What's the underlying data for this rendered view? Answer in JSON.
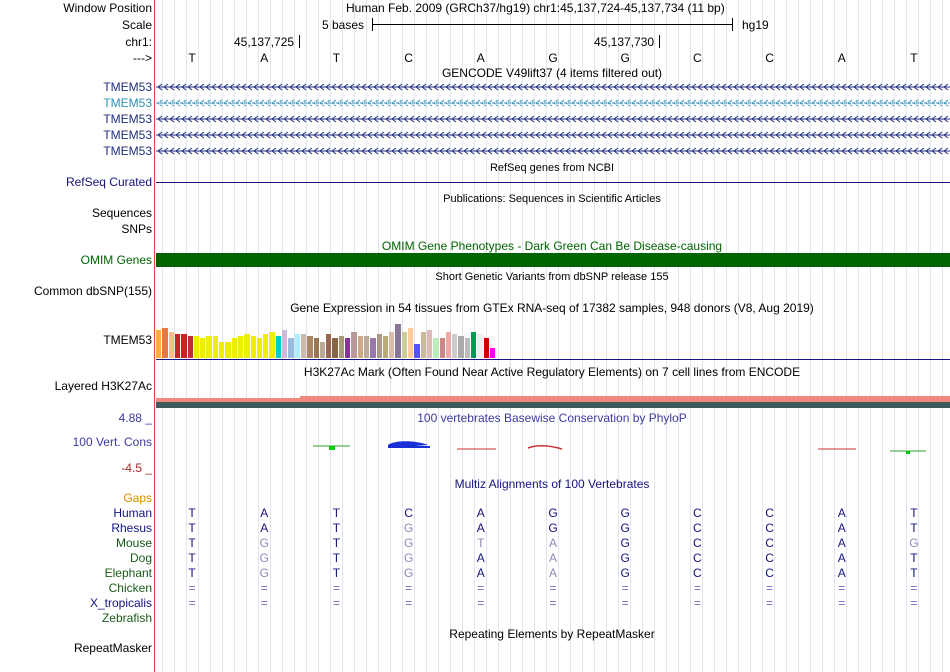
{
  "labels": {
    "window_position": "Window Position",
    "scale": "Scale",
    "chrom": "chr1:",
    "arrow": "--->",
    "gencode_genes": [
      "TMEM53",
      "TMEM53",
      "TMEM53",
      "TMEM53",
      "TMEM53"
    ],
    "refseq": "RefSeq Curated",
    "sequences": "Sequences",
    "snps": "SNPs",
    "omim": "OMIM Genes",
    "dbsnp": "Common dbSNP(155)",
    "gtex_gene": "TMEM53",
    "h3k27ac": "Layered H3K27Ac",
    "cons_max": "4.88 _",
    "cons": "100 Vert. Cons",
    "cons_min": "-4.5 _",
    "gaps": "Gaps",
    "species": [
      "Human",
      "Rhesus",
      "Mouse",
      "Dog",
      "Elephant",
      "Chicken",
      "X_tropicalis",
      "Zebrafish"
    ],
    "repeatmasker": "RepeatMasker"
  },
  "header": {
    "position": "Human Feb. 2009 (GRCh37/hg19)   chr1:45,137,724-45,137,734 (11 bp)",
    "scale_text": "5 bases",
    "assembly": "hg19",
    "coord1": "45,137,725",
    "coord2": "45,137,730"
  },
  "bases": [
    "T",
    "A",
    "T",
    "C",
    "A",
    "G",
    "G",
    "C",
    "C",
    "A",
    "T"
  ],
  "tracks": {
    "gencode_title": "GENCODE V49lift37 (4 items filtered out)",
    "refseq_title": "RefSeq genes from NCBI",
    "publications_title": "Publications: Sequences in Scientific Articles",
    "omim_title": "OMIM Gene Phenotypes - Dark Green Can Be Disease-causing",
    "dbsnp_title": "Short Genetic Variants from dbSNP release 155",
    "gtex_title": "Gene Expression in 54 tissues from GTEx RNA-seq of 17382 samples, 948 donors (V8, Aug 2019)",
    "h3k27ac_title": "H3K27Ac Mark (Often Found Near Active Regulatory Elements) on 7 cell lines from ENCODE",
    "phylop_title": "100 vertebrates Basewise Conservation by PhyloP",
    "multiz_title": "Multiz Alignments of 100 Vertebrates",
    "repeat_title": "Repeating Elements by RepeatMasker"
  },
  "alignment": [
    [
      "T",
      "A",
      "T",
      "C",
      "A",
      "G",
      "G",
      "C",
      "C",
      "A",
      "T"
    ],
    [
      "T",
      "A",
      "T",
      "G",
      "A",
      "G",
      "G",
      "C",
      "C",
      "A",
      "T"
    ],
    [
      "T",
      "G",
      "T",
      "G",
      "T",
      "A",
      "G",
      "C",
      "C",
      "A",
      "G"
    ],
    [
      "T",
      "G",
      "T",
      "G",
      "A",
      "A",
      "G",
      "C",
      "C",
      "A",
      "T"
    ],
    [
      "T",
      "G",
      "T",
      "G",
      "A",
      "A",
      "G",
      "C",
      "C",
      "A",
      "T"
    ],
    [
      "=",
      "=",
      "=",
      "=",
      "=",
      "=",
      "=",
      "=",
      "=",
      "=",
      "="
    ],
    [
      "=",
      "=",
      "=",
      "=",
      "=",
      "=",
      "=",
      "=",
      "=",
      "=",
      "="
    ]
  ],
  "gtex_values": [
    28,
    30,
    26,
    24,
    24,
    22,
    22,
    20,
    22,
    22,
    16,
    16,
    20,
    22,
    24,
    22,
    20,
    24,
    26,
    22,
    28,
    20,
    24,
    24,
    22,
    20,
    16,
    24,
    20,
    22,
    20,
    26,
    22,
    22,
    20,
    24,
    22,
    26,
    34,
    26,
    30,
    14,
    26,
    28,
    20,
    20,
    26,
    24,
    22,
    20,
    26,
    24,
    20,
    10
  ],
  "gtex_colors": [
    "#ffaa55",
    "#ee7733",
    "#ffbb88",
    "#cc2222",
    "#cc2222",
    "#bb3333",
    "#eeee00",
    "#eeee00",
    "#eeee00",
    "#eeee00",
    "#eeee00",
    "#eeee00",
    "#eeee00",
    "#eeee00",
    "#eeee00",
    "#eeee00",
    "#eeee00",
    "#eeee00",
    "#eeee00",
    "#00cccc",
    "#ccbbdd",
    "#99bbdd",
    "#aaeeff",
    "#ccbbaa",
    "#aa8866",
    "#997755",
    "#bbaa99",
    "#996655",
    "#886644",
    "#aa9977",
    "#883399",
    "#bb9999",
    "#ccaa88",
    "#bbaa99",
    "#9977aa",
    "#aa9988",
    "#bbaa77",
    "#ddbbaa",
    "#887799",
    "#cccc99",
    "#ffcc99",
    "#5555ff",
    "#ccbb99",
    "#ddbbbb",
    "#bbeebb",
    "#cc8888",
    "#eeaaaa",
    "#cccccc",
    "#aaaaaa",
    "#bbbbbb",
    "#009955",
    "#eeeeee",
    "#cc0000",
    "#ff00ff"
  ],
  "omim_color": "#006400"
}
